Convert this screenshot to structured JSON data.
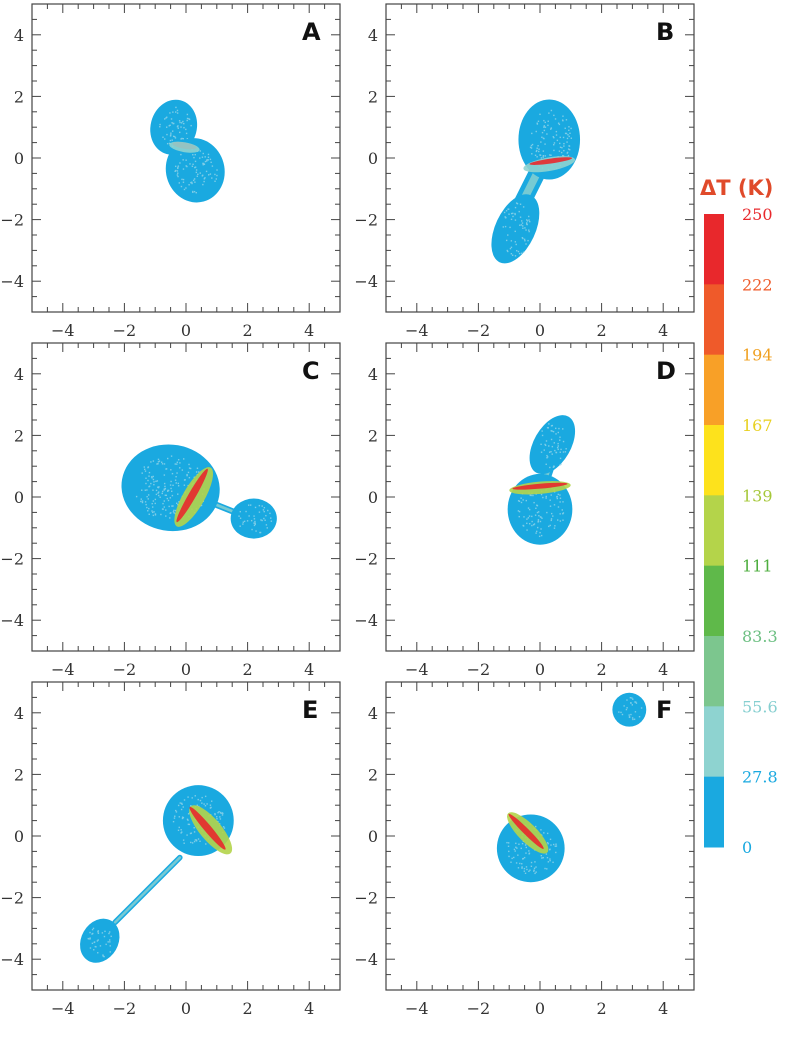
{
  "chart_data": {
    "type": "scatter",
    "description_units": "axes in data units, temperature increase in K",
    "axis": {
      "xlim": [
        -5,
        5
      ],
      "ylim": [
        -5,
        5
      ],
      "xticks": [
        -4,
        -2,
        0,
        2,
        4
      ],
      "yticks": [
        -4,
        -2,
        0,
        2,
        4
      ],
      "minor_step": 0.5
    },
    "colorbar": {
      "title": "ΔT (K)",
      "labels": [
        "250",
        "222",
        "194",
        "167",
        "139",
        "111",
        "83.3",
        "55.6",
        "27.8",
        "0"
      ],
      "values": [
        250,
        222,
        194,
        167,
        139,
        111,
        83.3,
        55.6,
        27.8,
        0
      ],
      "colors": [
        "#e8282c",
        "#ef5a2a",
        "#f8a027",
        "#fde21c",
        "#b4d44a",
        "#5fb94a",
        "#7cc68e",
        "#8ed3d0",
        "#1aa9e0"
      ],
      "title_color": "#e04a2a",
      "label_colors": [
        "#e8282c",
        "#ef5a2a",
        "#f0a020",
        "#e8d020",
        "#a6c83a",
        "#4eae3f",
        "#6cbf82",
        "#86cfd0",
        "#1aa9e0",
        "#1aa9e0"
      ]
    },
    "base_color": "#1aa9e0",
    "panels": [
      {
        "label": "A",
        "bodies": [
          {
            "cx": -0.4,
            "cy": 1.0,
            "rx": 0.75,
            "ry": 0.9,
            "rot": -15
          },
          {
            "cx": 0.3,
            "cy": -0.4,
            "rx": 0.95,
            "ry": 1.05,
            "rot": 15
          }
        ],
        "streams": [],
        "hot": [
          {
            "cx": -0.05,
            "cy": 0.4,
            "rx": 0.4,
            "ry": 0.1,
            "rot": -10,
            "color": "#e8282c"
          },
          {
            "cx": -0.05,
            "cy": 0.35,
            "rx": 0.5,
            "ry": 0.16,
            "rot": -10,
            "color": "#8ed3d0"
          }
        ]
      },
      {
        "label": "B",
        "bodies": [
          {
            "cx": 0.3,
            "cy": 0.6,
            "rx": 1.0,
            "ry": 1.3,
            "rot": 0
          },
          {
            "cx": -0.8,
            "cy": -2.3,
            "rx": 0.65,
            "ry": 1.2,
            "rot": -25
          }
        ],
        "streams": [
          {
            "x1": 0.0,
            "y1": -0.3,
            "x2": -0.6,
            "y2": -1.5,
            "w": 0.55
          }
        ],
        "hot": [
          {
            "cx": 0.3,
            "cy": -0.2,
            "rx": 0.85,
            "ry": 0.22,
            "rot": 10,
            "color": "#8ed3d0"
          },
          {
            "cx": 0.35,
            "cy": -0.1,
            "rx": 0.7,
            "ry": 0.08,
            "rot": 8,
            "color": "#e8282c"
          }
        ]
      },
      {
        "label": "C",
        "bodies": [
          {
            "cx": -0.5,
            "cy": 0.3,
            "rx": 1.6,
            "ry": 1.4,
            "rot": -10
          },
          {
            "cx": 2.2,
            "cy": -0.7,
            "rx": 0.75,
            "ry": 0.65,
            "rot": 0
          }
        ],
        "streams": [
          {
            "x1": 0.6,
            "y1": -0.1,
            "x2": 1.6,
            "y2": -0.5,
            "w": 0.2
          }
        ],
        "hot": [
          {
            "cx": 0.25,
            "cy": 0.0,
            "rx": 0.35,
            "ry": 1.1,
            "rot": -30,
            "color": "#b4d44a"
          },
          {
            "cx": 0.2,
            "cy": 0.05,
            "rx": 0.12,
            "ry": 1.0,
            "rot": -30,
            "color": "#e8282c"
          }
        ]
      },
      {
        "label": "D",
        "bodies": [
          {
            "cx": 0.0,
            "cy": -0.4,
            "rx": 1.05,
            "ry": 1.15,
            "rot": 0
          },
          {
            "cx": 0.4,
            "cy": 1.7,
            "rx": 0.6,
            "ry": 1.05,
            "rot": -30
          }
        ],
        "streams": [
          {
            "x1": 0.1,
            "y1": 0.4,
            "x2": 0.3,
            "y2": 1.0,
            "w": 0.35
          }
        ],
        "hot": [
          {
            "cx": 0.0,
            "cy": 0.3,
            "rx": 1.0,
            "ry": 0.2,
            "rot": 5,
            "color": "#b4d44a"
          },
          {
            "cx": 0.0,
            "cy": 0.35,
            "rx": 0.9,
            "ry": 0.08,
            "rot": 5,
            "color": "#e8282c"
          }
        ]
      },
      {
        "label": "E",
        "bodies": [
          {
            "cx": 0.4,
            "cy": 0.5,
            "rx": 1.15,
            "ry": 1.15,
            "rot": 0
          },
          {
            "cx": -2.8,
            "cy": -3.4,
            "rx": 0.6,
            "ry": 0.75,
            "rot": -30
          }
        ],
        "streams": [
          {
            "x1": -0.2,
            "y1": -0.7,
            "x2": -2.3,
            "y2": -2.8,
            "w": 0.18
          }
        ],
        "hot": [
          {
            "cx": 0.8,
            "cy": 0.2,
            "rx": 0.35,
            "ry": 1.0,
            "rot": 40,
            "color": "#b4d44a"
          },
          {
            "cx": 0.7,
            "cy": 0.25,
            "rx": 0.12,
            "ry": 0.9,
            "rot": 40,
            "color": "#e8282c"
          }
        ]
      },
      {
        "label": "F",
        "bodies": [
          {
            "cx": -0.3,
            "cy": -0.4,
            "rx": 1.1,
            "ry": 1.1,
            "rot": 0
          },
          {
            "cx": 2.9,
            "cy": 4.1,
            "rx": 0.55,
            "ry": 0.55,
            "rot": 0
          }
        ],
        "streams": [],
        "hot": [
          {
            "cx": -0.4,
            "cy": 0.1,
            "rx": 0.3,
            "ry": 0.9,
            "rot": 45,
            "color": "#b4d44a"
          },
          {
            "cx": -0.45,
            "cy": 0.15,
            "rx": 0.1,
            "ry": 0.8,
            "rot": 45,
            "color": "#e8282c"
          }
        ]
      }
    ]
  }
}
